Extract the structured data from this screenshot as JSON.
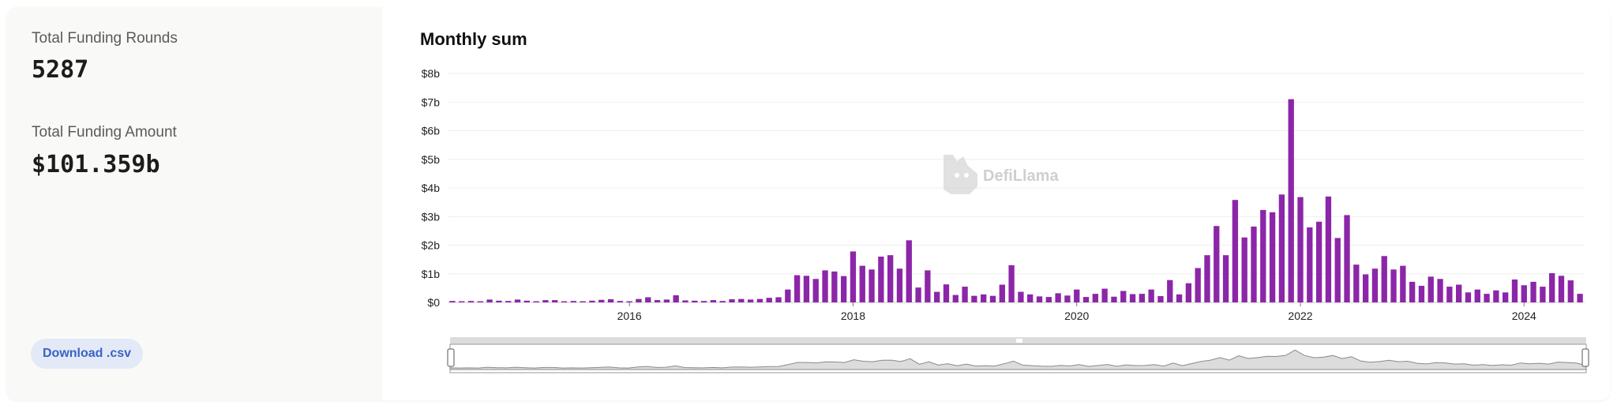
{
  "stats": {
    "rounds_label": "Total Funding Rounds",
    "rounds_value": "5287",
    "amount_label": "Total Funding Amount",
    "amount_value": "$101.359b"
  },
  "download_label": "Download .csv",
  "watermark": "DefiLlama",
  "colors": {
    "bar": "#8c26a8",
    "panel_bg": "#f9f9f8",
    "button_bg": "#e3e9f6",
    "button_text": "#3b62c4"
  },
  "chart_data": {
    "type": "bar",
    "title": "Monthly sum",
    "xlabel": "",
    "ylabel": "",
    "x_unit": "year (monthly bars)",
    "ylim": [
      0,
      8
    ],
    "y_unit": "$b",
    "yticks": [
      "$0",
      "$1b",
      "$2b",
      "$3b",
      "$4b",
      "$5b",
      "$6b",
      "$7b",
      "$8b"
    ],
    "xticks": [
      "2016",
      "2018",
      "2020",
      "2022",
      "2024"
    ],
    "grid": true,
    "legend": "none",
    "x_start": "2014-06",
    "series": [
      {
        "values": [
          0.05,
          0.04,
          0.05,
          0.04,
          0.1,
          0.06,
          0.05,
          0.1,
          0.06,
          0.04,
          0.08,
          0.08,
          0.04,
          0.05,
          0.04,
          0.06,
          0.09,
          0.11,
          0.05,
          0.04,
          0.12,
          0.18,
          0.08,
          0.1,
          0.25,
          0.07,
          0.06,
          0.05,
          0.08,
          0.05,
          0.11,
          0.12,
          0.1,
          0.12,
          0.16,
          0.18,
          0.45,
          0.95,
          0.93,
          0.82,
          1.12,
          1.08,
          0.92,
          1.78,
          1.28,
          1.15,
          1.6,
          1.65,
          1.18,
          2.17,
          0.52,
          1.12,
          0.37,
          0.63,
          0.26,
          0.55,
          0.23,
          0.28,
          0.23,
          0.62,
          1.3,
          0.37,
          0.28,
          0.21,
          0.19,
          0.32,
          0.24,
          0.45,
          0.19,
          0.3,
          0.48,
          0.2,
          0.4,
          0.29,
          0.3,
          0.45,
          0.22,
          0.78,
          0.28,
          0.67,
          1.2,
          1.65,
          2.67,
          1.65,
          3.58,
          2.27,
          2.65,
          3.23,
          3.15,
          3.77,
          7.1,
          3.68,
          2.62,
          2.82,
          3.7,
          2.25,
          3.05,
          1.32,
          0.98,
          1.18,
          1.62,
          1.15,
          1.28,
          0.72,
          0.58,
          0.9,
          0.82,
          0.55,
          0.62,
          0.35,
          0.45,
          0.3,
          0.42,
          0.35,
          0.8,
          0.6,
          0.72,
          0.55,
          1.02,
          0.93,
          0.77,
          0.3
        ]
      }
    ]
  }
}
